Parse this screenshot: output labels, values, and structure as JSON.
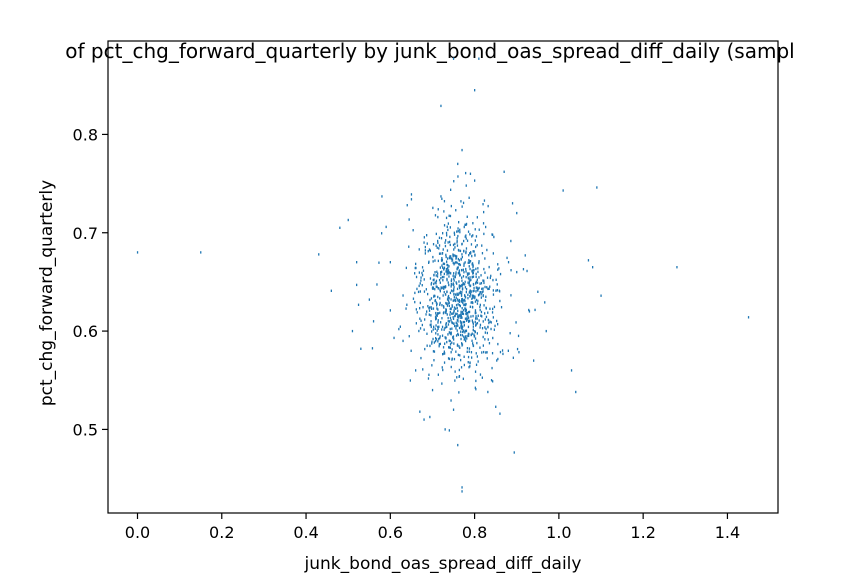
{
  "chart_data": {
    "type": "scatter",
    "title": "of pct_chg_forward_quarterly by junk_bond_oas_spread_diff_daily (sampl",
    "xlabel": "junk_bond_oas_spread_diff_daily",
    "ylabel": "pct_chg_forward_quarterly",
    "xlim": [
      -0.07,
      1.52
    ],
    "ylim": [
      0.415,
      0.895
    ],
    "xticks": [
      0.0,
      0.2,
      0.4,
      0.6,
      0.8,
      1.0,
      1.2,
      1.4
    ],
    "xtick_labels": [
      "0.0",
      "0.2",
      "0.4",
      "0.6",
      "0.8",
      "1.0",
      "1.2",
      "1.4"
    ],
    "yticks": [
      0.5,
      0.6,
      0.7,
      0.8
    ],
    "ytick_labels": [
      "0.5",
      "0.6",
      "0.7",
      "0.8"
    ],
    "grid": false,
    "marker_color": "#1f77b4",
    "notes_cluster": {
      "x_center": 0.76,
      "y_center": 0.635,
      "n_approx": 1000
    },
    "points": [
      [
        0.0,
        0.68
      ],
      [
        0.15,
        0.68
      ],
      [
        0.43,
        0.678
      ],
      [
        0.46,
        0.641
      ],
      [
        0.48,
        0.705
      ],
      [
        0.5,
        0.713
      ],
      [
        0.51,
        0.6
      ],
      [
        0.52,
        0.67
      ],
      [
        0.52,
        0.647
      ],
      [
        0.53,
        0.582
      ],
      [
        0.55,
        0.632
      ],
      [
        0.58,
        0.737
      ],
      [
        0.59,
        0.706
      ],
      [
        0.6,
        0.621
      ],
      [
        0.62,
        0.602
      ],
      [
        0.64,
        0.728
      ],
      [
        0.65,
        0.734
      ],
      [
        0.67,
        0.518
      ],
      [
        0.68,
        0.51
      ],
      [
        0.72,
        0.829
      ],
      [
        0.72,
        0.737
      ],
      [
        0.73,
        0.5
      ],
      [
        0.74,
        0.499
      ],
      [
        0.75,
        0.877
      ],
      [
        0.76,
        0.77
      ],
      [
        0.76,
        0.484
      ],
      [
        0.77,
        0.784
      ],
      [
        0.77,
        0.441
      ],
      [
        0.77,
        0.437
      ],
      [
        0.78,
        0.748
      ],
      [
        0.79,
        0.76
      ],
      [
        0.8,
        0.845
      ],
      [
        0.8,
        0.753
      ],
      [
        0.81,
        0.877
      ],
      [
        0.82,
        0.729
      ],
      [
        0.85,
        0.523
      ],
      [
        0.86,
        0.516
      ],
      [
        0.87,
        0.762
      ],
      [
        0.89,
        0.73
      ],
      [
        0.9,
        0.72
      ],
      [
        0.92,
        0.677
      ],
      [
        0.94,
        0.57
      ],
      [
        0.97,
        0.6
      ],
      [
        1.01,
        0.743
      ],
      [
        1.03,
        0.56
      ],
      [
        1.04,
        0.538
      ],
      [
        1.07,
        0.672
      ],
      [
        1.08,
        0.665
      ],
      [
        1.09,
        0.746
      ],
      [
        1.1,
        0.636
      ],
      [
        1.28,
        0.665
      ],
      [
        1.45,
        0.614
      ],
      [
        0.56,
        0.61
      ],
      [
        0.6,
        0.67
      ],
      [
        0.63,
        0.59
      ],
      [
        0.66,
        0.56
      ],
      [
        0.68,
        0.69
      ],
      [
        0.7,
        0.54
      ],
      [
        0.84,
        0.55
      ],
      [
        0.88,
        0.58
      ],
      [
        0.9,
        0.66
      ],
      [
        0.93,
        0.62
      ],
      [
        0.95,
        0.64
      ]
    ]
  }
}
